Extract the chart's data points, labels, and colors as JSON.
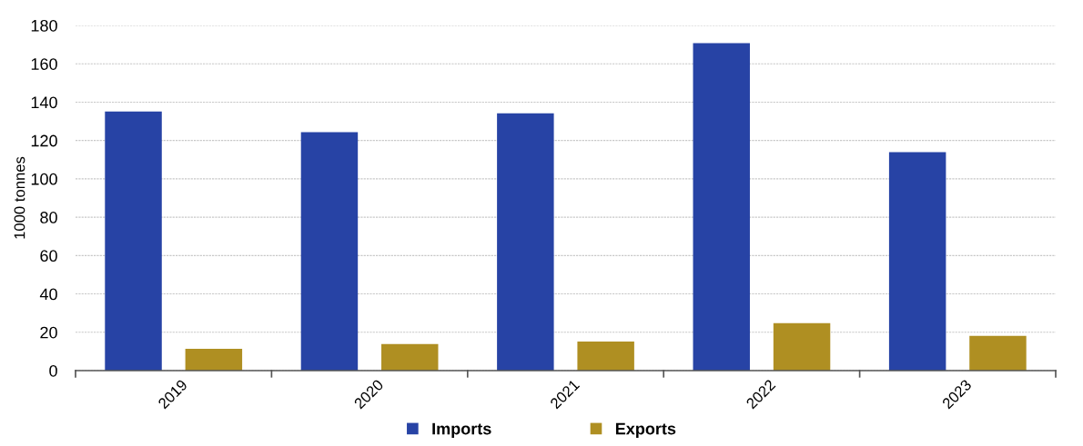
{
  "chart_data": {
    "type": "bar",
    "ylabel": "1000 tonnes",
    "categories": [
      "2019",
      "2020",
      "2021",
      "2022",
      "2023"
    ],
    "series": [
      {
        "name": "Imports",
        "color": "#2743a5",
        "values": [
          135.1,
          124.4,
          134.2,
          170.8,
          113.9
        ]
      },
      {
        "name": "Exports",
        "color": "#af8f22",
        "values": [
          11.4,
          13.8,
          15.2,
          24.8,
          18.1
        ]
      }
    ],
    "ylim": [
      0,
      180
    ],
    "yticks": [
      0,
      20,
      40,
      60,
      80,
      100,
      120,
      140,
      160,
      180
    ],
    "grid": "y",
    "legend": "bottom"
  }
}
